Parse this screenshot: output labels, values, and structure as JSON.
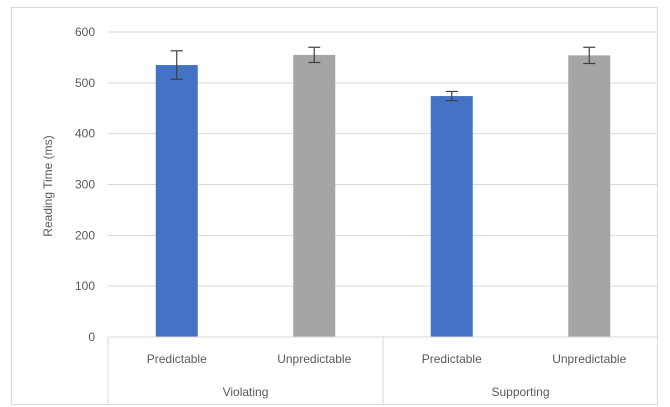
{
  "chart_data": {
    "type": "bar",
    "ylabel": "Reading Time (ms)",
    "ylim": [
      0,
      600
    ],
    "yticks": [
      0,
      100,
      200,
      300,
      400,
      500,
      600
    ],
    "grid": true,
    "groups": [
      {
        "label": "Violating",
        "bars": [
          {
            "label": "Predictable",
            "value": 535,
            "error": 28,
            "color": "#4472c4"
          },
          {
            "label": "Unpredictable",
            "value": 555,
            "error": 15,
            "color": "#a5a5a5"
          }
        ]
      },
      {
        "label": "Supporting",
        "bars": [
          {
            "label": "Predictable",
            "value": 474,
            "error": 9,
            "color": "#4472c4"
          },
          {
            "label": "Unpredictable",
            "value": 554,
            "error": 16,
            "color": "#a5a5a5"
          }
        ]
      }
    ]
  }
}
